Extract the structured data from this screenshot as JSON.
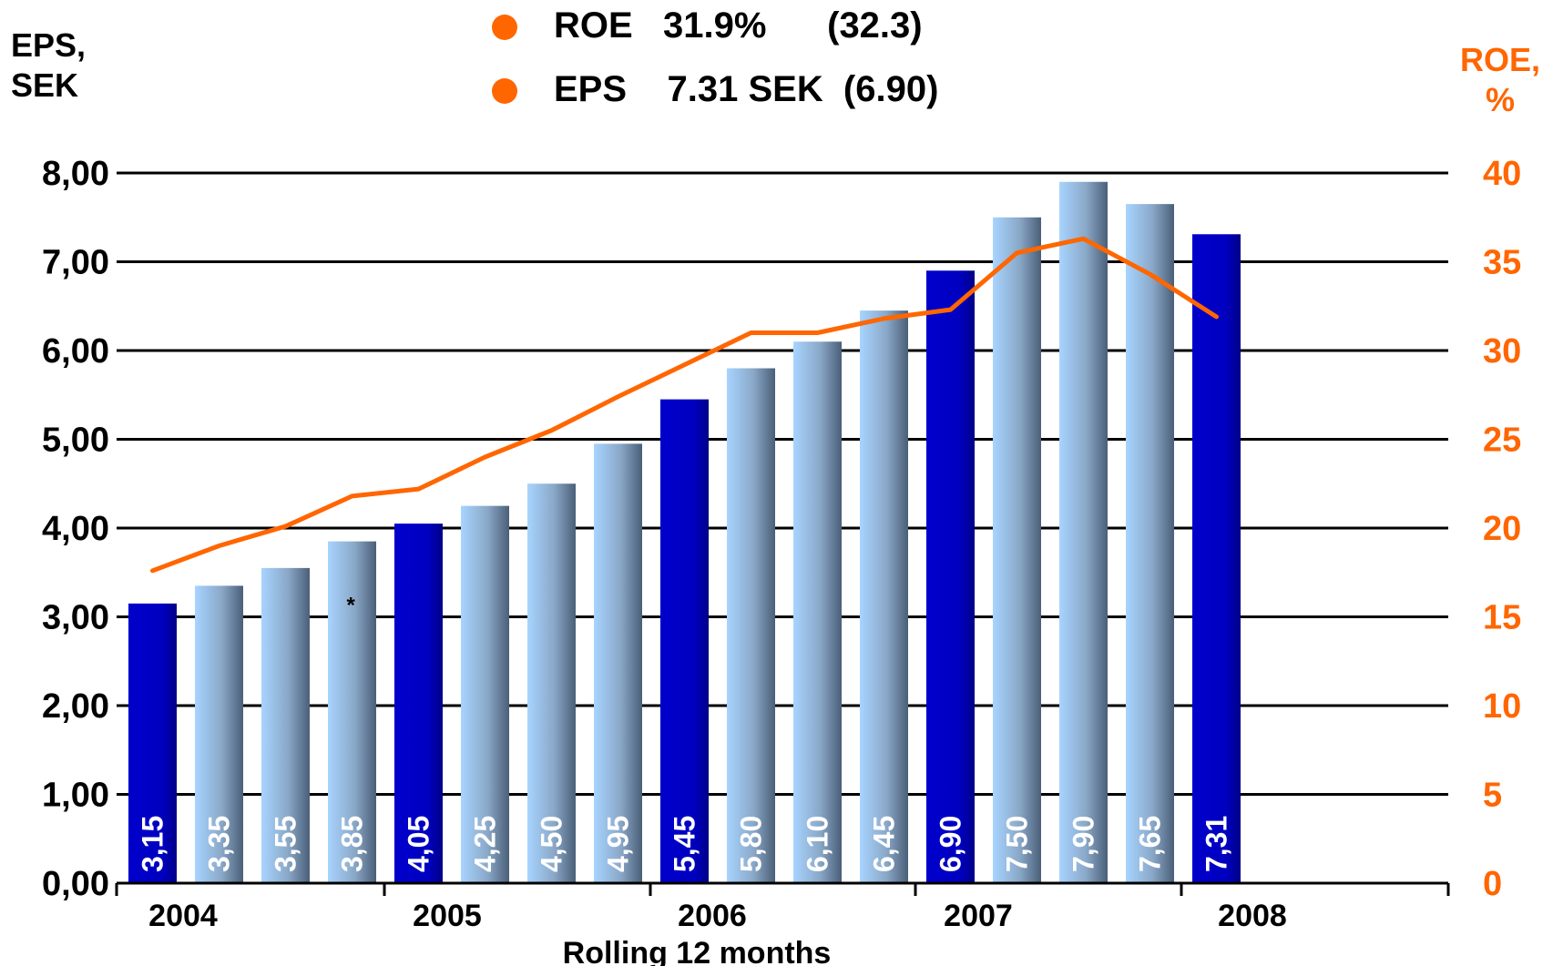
{
  "legend": {
    "roe": "ROE   31.9%      (32.3)",
    "eps": "EPS    7.31 SEK  (6.90)"
  },
  "axis_titles": {
    "left_line1": "EPS,",
    "left_line2": "SEK",
    "right_line1": "ROE,",
    "right_line2": "%"
  },
  "chart_data": {
    "type": "bar",
    "xlabel": "Rolling 12 months",
    "year_labels": [
      "2004",
      "2005",
      "2006",
      "2007",
      "2008"
    ],
    "annotation": "*",
    "left_axis": {
      "ylim": [
        0,
        8
      ],
      "ticks": [
        "0,00",
        "1,00",
        "2,00",
        "3,00",
        "4,00",
        "5,00",
        "6,00",
        "7,00",
        "8,00"
      ]
    },
    "right_axis": {
      "ylim": [
        0,
        40
      ],
      "ticks": [
        "0",
        "5",
        "10",
        "15",
        "20",
        "25",
        "30",
        "35",
        "40"
      ]
    },
    "bars": {
      "name": "EPS",
      "values": [
        3.15,
        3.35,
        3.55,
        3.85,
        4.05,
        4.25,
        4.5,
        4.95,
        5.45,
        5.8,
        6.1,
        6.45,
        6.9,
        7.5,
        7.9,
        7.65,
        7.31
      ],
      "labels": [
        "3,15",
        "3,35",
        "3,55",
        "3,85",
        "4,05",
        "4,25",
        "4,50",
        "4,95",
        "5,45",
        "5,80",
        "6,10",
        "6,45",
        "6,90",
        "7,50",
        "7,90",
        "7,65",
        "7,31"
      ],
      "highlighted": [
        true,
        false,
        false,
        false,
        true,
        false,
        false,
        false,
        true,
        false,
        false,
        false,
        true,
        false,
        false,
        false,
        true
      ]
    },
    "line": {
      "name": "ROE",
      "values": [
        17.6,
        19.0,
        20.1,
        21.8,
        22.2,
        24.0,
        25.5,
        27.4,
        29.2,
        31.0,
        31.0,
        31.8,
        32.3,
        35.5,
        36.3,
        34.3,
        31.9
      ]
    },
    "grid": true,
    "colors": {
      "highlight_bar": "#0000cc",
      "bar_light": "#a8d4ff",
      "bar_dark": "#4a5f78",
      "line": "#ff6600",
      "right_axis": "#ff6600",
      "grid": "#000000"
    }
  }
}
